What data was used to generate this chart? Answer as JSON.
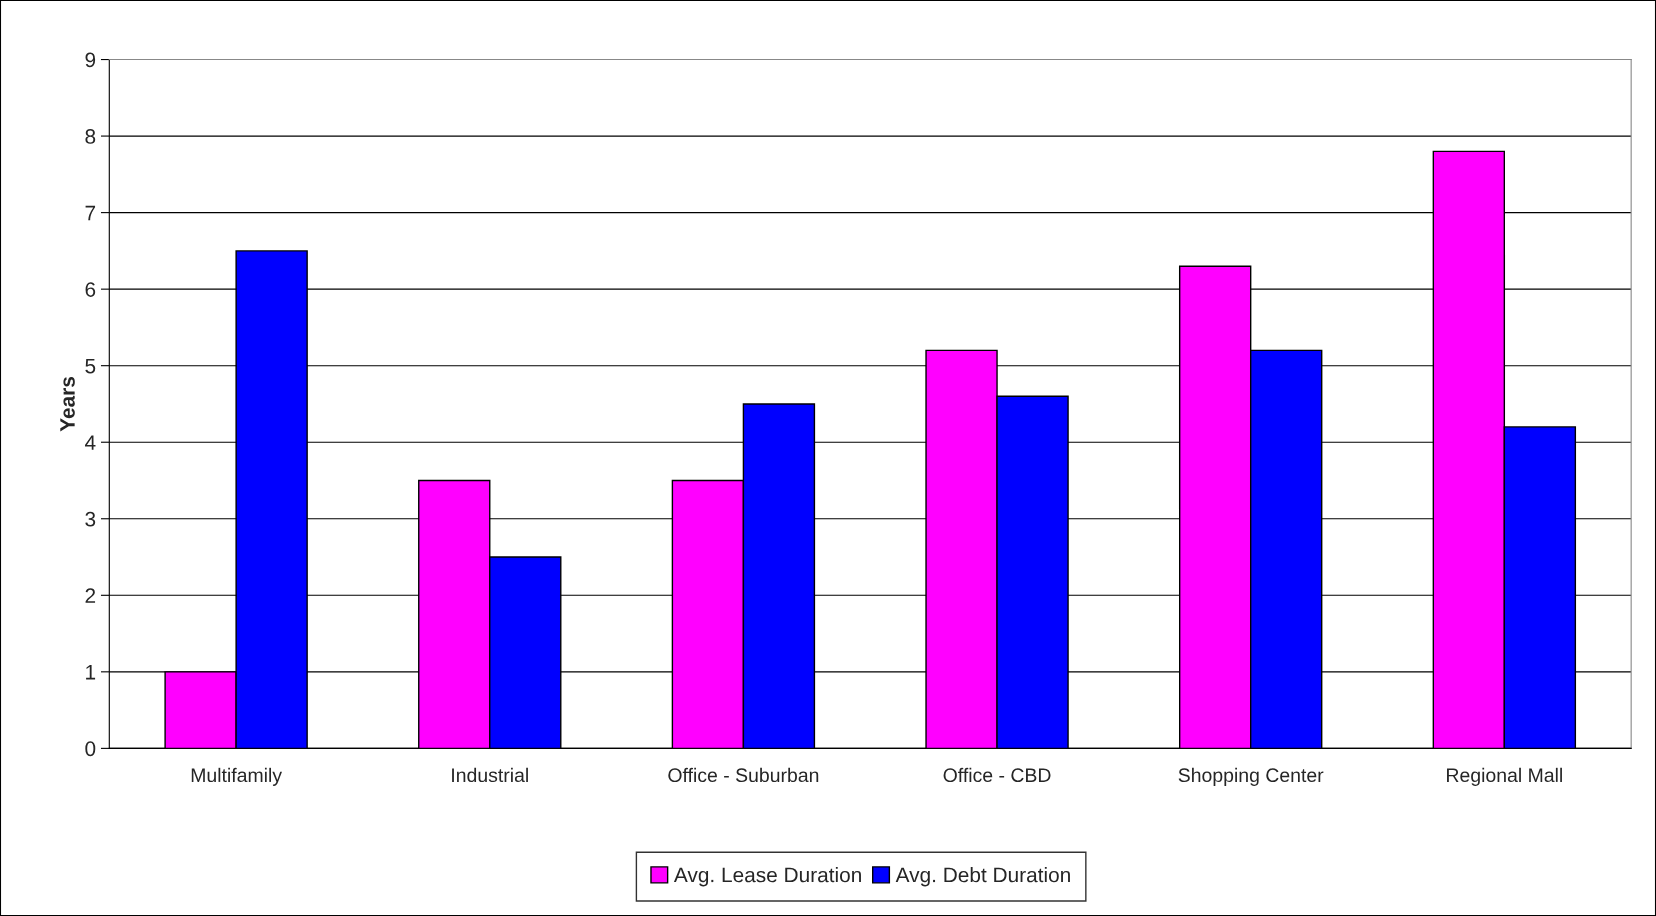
{
  "chart_data": {
    "type": "bar",
    "ylabel": "Years",
    "categories": [
      "Multifamily",
      "Industrial",
      "Office - Suburban",
      "Office - CBD",
      "Shopping Center",
      "Regional Mall"
    ],
    "series": [
      {
        "name": "Avg. Lease Duration",
        "color": "#ff00ff",
        "values": [
          1.0,
          3.5,
          3.5,
          5.2,
          6.3,
          7.8
        ]
      },
      {
        "name": "Avg. Debt Duration",
        "color": "#0000ff",
        "values": [
          6.5,
          2.5,
          4.5,
          4.6,
          5.2,
          4.2
        ]
      }
    ],
    "ylim": [
      0,
      9
    ],
    "yticks": [
      0,
      1,
      2,
      3,
      4,
      5,
      6,
      7,
      8,
      9
    ],
    "grid": "y",
    "legend": "bottom"
  }
}
